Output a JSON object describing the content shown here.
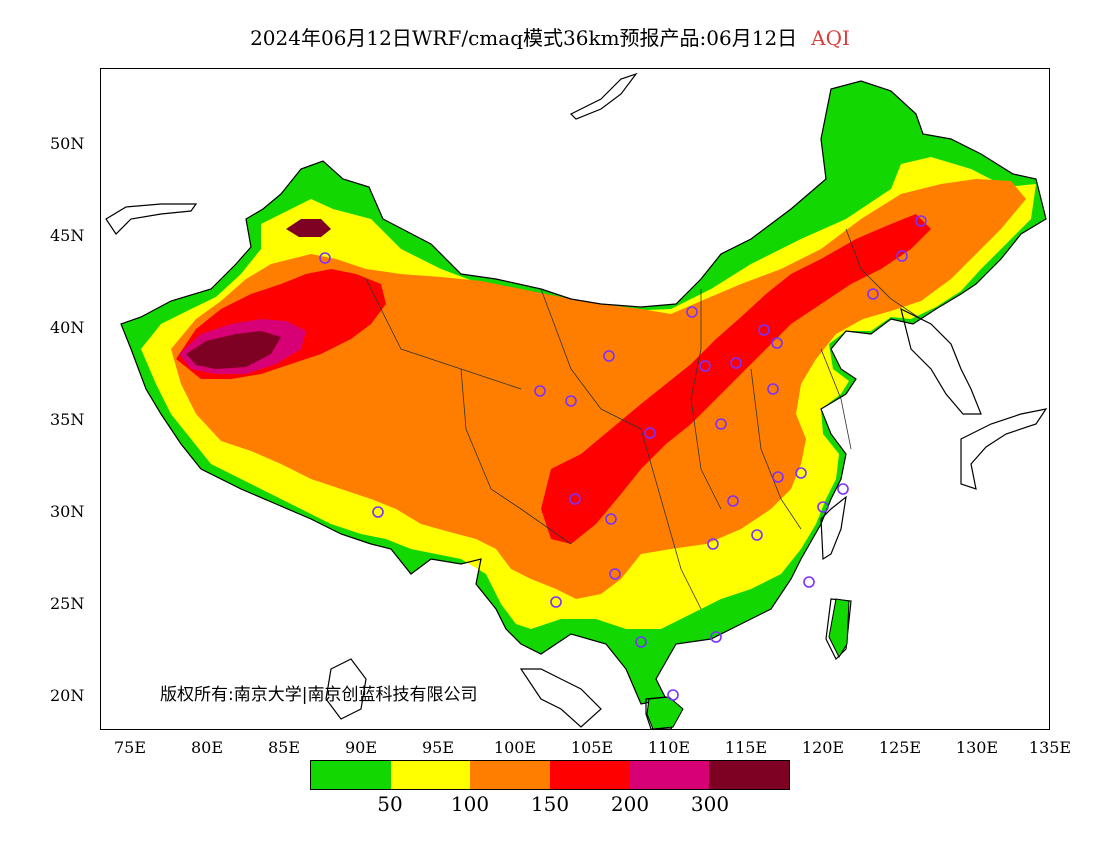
{
  "header": {
    "title": "2024年06月12日WRF/cmaq模式36km预报产品:06月12日",
    "variable": "AQI"
  },
  "map": {
    "lat_labels": [
      "50N",
      "45N",
      "40N",
      "35N",
      "30N",
      "25N",
      "20N"
    ],
    "lon_labels": [
      "75E",
      "80E",
      "85E",
      "90E",
      "95E",
      "100E",
      "105E",
      "110E",
      "115E",
      "120E",
      "125E",
      "130E",
      "135E"
    ],
    "copyright": "版权所有:南京大学|南京创蓝科技有限公司"
  },
  "legend": {
    "colors": [
      "#12d700",
      "#ffff00",
      "#ff7e00",
      "#ff0000",
      "#d70074",
      "#7e0023"
    ],
    "labels": [
      "50",
      "100",
      "150",
      "200",
      "300"
    ]
  }
}
